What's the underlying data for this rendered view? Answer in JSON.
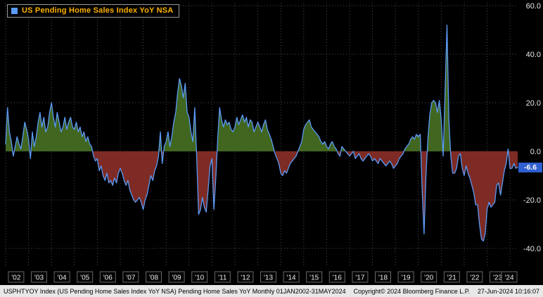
{
  "legend": {
    "label": "US Pending Home Sales Index YoY NSA"
  },
  "badge": {
    "value": "-6.6"
  },
  "footer": {
    "left": "USPHTYOY Index (US Pending Home Sales Index YoY NSA) Pending Home Sales YoY  Monthly 01JAN2002-31MAY2024",
    "center": "Copyright© 2024 Bloomberg Finance L.P.",
    "right": "27-Jun-2024 10:16:07"
  },
  "colors": {
    "background": "#000000",
    "line": "#5b9bf8",
    "area_positive": "#41661f",
    "area_negative": "#7d2b24",
    "grid": "#4d4d4d",
    "axis_text": "#e8e8e8",
    "tick_box_border": "#666666",
    "badge_bg": "#2f5fd0",
    "legend_text": "#ffb300",
    "footer_bg": "#e8e8e8"
  },
  "chart_data": {
    "type": "area",
    "title": "US Pending Home Sales Index YoY NSA",
    "ticker": "USPHTYOY Index",
    "frequency": "Monthly",
    "period": "01JAN2002-31MAY2024",
    "x_start": "2002-01",
    "x_end": "2024-05",
    "ylim": [
      -50,
      62
    ],
    "grid": true,
    "legend_position": "top-left",
    "y_ticks": [
      60,
      40,
      20,
      0,
      -20,
      -40
    ],
    "y_tick_labels": [
      "60.0",
      "40.0",
      "20.0",
      "0.0",
      "-20.0",
      "-40.0"
    ],
    "x_labels": [
      "'02",
      "'03",
      "'04",
      "'05",
      "'06",
      "'07",
      "'08",
      "'09",
      "'10",
      "'11",
      "'12",
      "'13",
      "'14",
      "'15",
      "'16",
      "'17",
      "'18",
      "'19",
      "'20",
      "'21",
      "'22",
      "'23",
      "'24"
    ],
    "last_value": -6.6,
    "series": [
      {
        "name": "US Pending Home Sales Index YoY NSA",
        "values": [
          3,
          18,
          8,
          4,
          -2,
          2,
          6,
          3,
          1,
          6,
          12,
          9,
          5,
          -3,
          8,
          2,
          6,
          12,
          16,
          10,
          14,
          8,
          10,
          16,
          20,
          14,
          10,
          16,
          12,
          8,
          10,
          14,
          9,
          12,
          14,
          10,
          9,
          12,
          8,
          10,
          6,
          8,
          4,
          6,
          3,
          2,
          -2,
          -4,
          -3,
          -8,
          -6,
          -10,
          -12,
          -9,
          -13,
          -12,
          -14,
          -11,
          -13,
          -9,
          -7,
          -9,
          -12,
          -14,
          -12,
          -16,
          -18,
          -20,
          -21,
          -20,
          -19,
          -21,
          -24,
          -20,
          -18,
          -14,
          -10,
          -12,
          -8,
          -6,
          -2,
          8,
          -5,
          2,
          4,
          8,
          2,
          6,
          12,
          16,
          24,
          30,
          27,
          22,
          28,
          16,
          14,
          8,
          4,
          18,
          -2,
          -26,
          -24,
          -19,
          -23,
          -25,
          -16,
          -6,
          -3,
          -24,
          -11,
          5,
          18,
          13,
          10,
          13,
          11,
          12,
          9,
          8,
          10,
          14,
          11,
          13,
          15,
          12,
          14,
          10,
          13,
          12,
          8,
          10,
          12,
          10,
          8,
          11,
          13,
          9,
          7,
          5,
          2,
          -1,
          -3,
          -5,
          -9,
          -10,
          -8,
          -9,
          -7,
          -5,
          -4,
          -3,
          -2,
          0,
          2,
          4,
          9,
          11,
          12,
          13,
          10,
          9,
          8,
          7,
          6,
          4,
          3,
          4,
          2,
          1,
          3,
          4,
          2,
          1,
          -1,
          -2,
          2,
          1,
          0,
          -1,
          -2,
          -1,
          0,
          -3,
          -2,
          -1,
          -3,
          -4,
          -3,
          -2,
          -1,
          -2,
          -4,
          -3,
          -4,
          -5,
          -3,
          -4,
          -5,
          -6,
          -5,
          -4,
          -5,
          -7,
          -6,
          -5,
          -3,
          -2,
          -1,
          1,
          2,
          3,
          5,
          6,
          5,
          7,
          6,
          7,
          -16,
          -34,
          -10,
          5,
          15,
          20,
          21,
          20,
          16,
          21,
          13,
          -2,
          25,
          52,
          13,
          -2,
          -9,
          -9,
          -7,
          -2,
          -1,
          -7,
          -10,
          -6,
          -9,
          -11,
          -14,
          -17,
          -22,
          -22,
          -30,
          -36,
          -37,
          -34,
          -24,
          -21,
          -23,
          -22,
          -21,
          -14,
          -13,
          -18,
          -13,
          -8,
          -5,
          1,
          -7,
          -7,
          -5,
          -7,
          -6.6
        ]
      }
    ]
  }
}
